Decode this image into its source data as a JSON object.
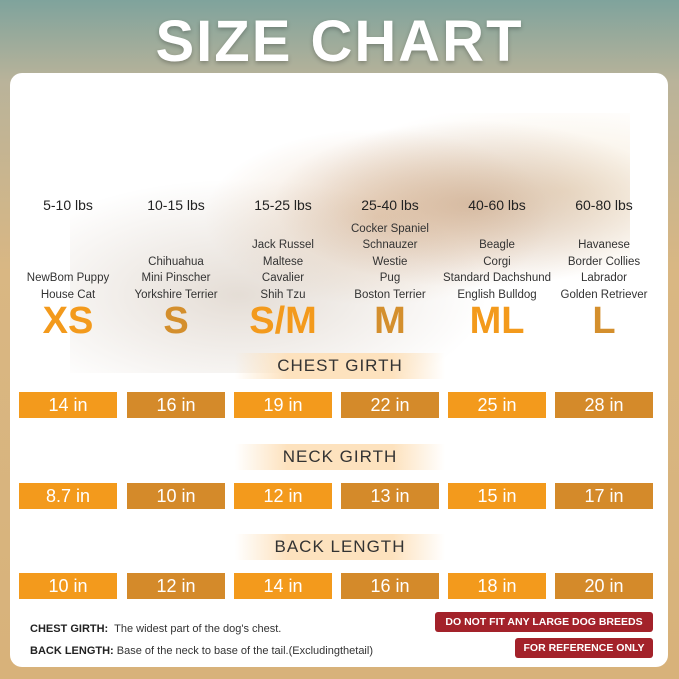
{
  "title": "SIZE CHART",
  "sizes": [
    {
      "size": "XS",
      "weight": "5-10 lbs",
      "breeds": [
        "NewBom Puppy",
        "House Cat"
      ],
      "color": "#f39a1c"
    },
    {
      "size": "S",
      "weight": "10-15 lbs",
      "breeds": [
        "Chihuahua",
        "Mini Pinscher",
        "Yorkshire Terrier"
      ],
      "color": "#d48f2d"
    },
    {
      "size": "S/M",
      "weight": "15-25 lbs",
      "breeds": [
        "Jack Russel",
        "Maltese",
        "Cavalier",
        "Shih Tzu"
      ],
      "color": "#f39a1c"
    },
    {
      "size": "M",
      "weight": "25-40 lbs",
      "breeds": [
        "Cocker Spaniel",
        "Schnauzer",
        "Westie",
        "Pug",
        "Boston Terrier"
      ],
      "color": "#d48f2d"
    },
    {
      "size": "ML",
      "weight": "40-60 lbs",
      "breeds": [
        "Beagle",
        "Corgi",
        "Standard Dachshund",
        "English Bulldog"
      ],
      "color": "#f39a1c"
    },
    {
      "size": "L",
      "weight": "60-80 lbs",
      "breeds": [
        "Havanese",
        "Border Collies",
        "Labrador",
        "Golden Retriever"
      ],
      "color": "#d48f2d"
    }
  ],
  "measurements": [
    {
      "label": "CHEST GIRTH",
      "values": [
        "14 in",
        "16 in",
        "19 in",
        "22 in",
        "25 in",
        "28 in"
      ]
    },
    {
      "label": "NECK GIRTH",
      "values": [
        "8.7 in",
        "10 in",
        "12 in",
        "13 in",
        "15 in",
        "17 in"
      ]
    },
    {
      "label": "BACK LENGTH",
      "values": [
        "10 in",
        "12 in",
        "14 in",
        "16 in",
        "18 in",
        "20 in"
      ]
    }
  ],
  "notes": [
    {
      "term": "CHEST GIRTH:",
      "text": "The widest part of the dog's chest."
    },
    {
      "term": "BACK LENGTH:",
      "text": "Base of the neck to base of the tail.(Excludingthetail)"
    }
  ],
  "tags": [
    "DO NOT FIT ANY LARGE DOG BREEDS",
    "FOR REFERENCE ONLY"
  ],
  "box_colors": [
    "#f39a1c",
    "#d48a2a"
  ]
}
